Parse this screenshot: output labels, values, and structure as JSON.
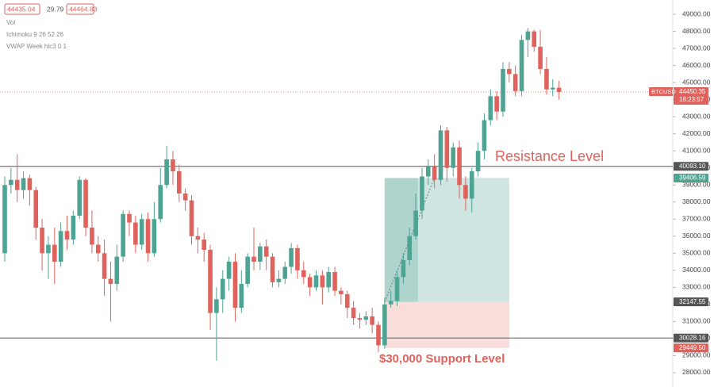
{
  "chart_data": {
    "type": "candlestick",
    "legend": {
      "values": [
        "44435.04",
        "29.79",
        "44464.83"
      ],
      "indicators": [
        "Vol",
        "Ichimoku 9 26 52 26",
        "VWAP Week hlc3 0 1"
      ]
    },
    "up_color": "#4fa392",
    "down_color": "#e0625c",
    "open": [
      35000,
      39000,
      39300,
      38700,
      39400,
      38700,
      36500,
      35000,
      35500,
      34500,
      36300,
      35800,
      37200,
      39300,
      36500,
      35500,
      35000,
      33500,
      33200,
      34800,
      37300,
      36800,
      35500,
      37000,
      35000,
      37000,
      39000,
      40500,
      39800,
      38500,
      38100,
      36000,
      35800,
      35200,
      31500,
      32300,
      33500,
      34500,
      31800,
      33200,
      34800,
      34500,
      35400,
      34800,
      33300,
      33500,
      34200,
      35300,
      34000,
      33600,
      33000,
      33700,
      33000,
      33900,
      32800,
      32600,
      31800,
      31200,
      31100,
      31300,
      30800,
      29600,
      32000,
      32200,
      33600,
      34600,
      36000,
      37500,
      39500,
      40100,
      39300,
      42200,
      40000,
      41200,
      39000,
      38200,
      39800,
      41000,
      42800,
      44200,
      43300,
      45800,
      45500,
      44500,
      47500,
      48000,
      47100,
      45800,
      44600,
      44700
    ],
    "high": [
      39500,
      40000,
      40800,
      39800,
      39600,
      38900,
      37000,
      36000,
      36500,
      36800,
      37200,
      37500,
      39500,
      39400,
      37500,
      36000,
      35800,
      34500,
      35500,
      37500,
      37500,
      37200,
      37300,
      37400,
      38000,
      40000,
      41300,
      41000,
      40200,
      38800,
      38400,
      36500,
      36200,
      35500,
      33000,
      34000,
      34800,
      35000,
      34000,
      35000,
      36500,
      35600,
      35800,
      35000,
      34000,
      34500,
      35600,
      35500,
      34500,
      33800,
      34000,
      34000,
      34200,
      34200,
      33000,
      32800,
      32200,
      31500,
      31600,
      31800,
      31000,
      32400,
      32800,
      34000,
      35000,
      36500,
      38500,
      40000,
      40500,
      40800,
      42500,
      42400,
      41500,
      41600,
      39500,
      40000,
      41500,
      43200,
      44600,
      44500,
      46200,
      46200,
      46000,
      47800,
      48200,
      48100,
      48100,
      46500,
      45200,
      45100
    ],
    "low": [
      34500,
      38500,
      38000,
      38200,
      37800,
      35800,
      34000,
      33500,
      33200,
      34200,
      35200,
      35500,
      37000,
      36000,
      35000,
      34500,
      32500,
      31000,
      32800,
      34500,
      36000,
      35000,
      35200,
      34500,
      34800,
      36800,
      38800,
      39000,
      38000,
      37500,
      35500,
      35000,
      34500,
      30500,
      28700,
      31500,
      32800,
      31000,
      31500,
      33000,
      34000,
      34000,
      34000,
      33000,
      33000,
      33200,
      33800,
      33500,
      33200,
      32500,
      32800,
      32000,
      32700,
      32500,
      32000,
      31200,
      30800,
      30600,
      30800,
      30300,
      29200,
      29400,
      31800,
      31900,
      33200,
      34300,
      35800,
      37000,
      39000,
      38800,
      39000,
      39200,
      39500,
      38200,
      37500,
      37400,
      39500,
      40500,
      42500,
      42800,
      43000,
      45000,
      44200,
      44200,
      46500,
      46800,
      45500,
      44300,
      44200,
      44000
    ],
    "close": [
      39000,
      39300,
      38700,
      39400,
      38700,
      36500,
      35000,
      35500,
      34500,
      36300,
      35800,
      37200,
      39300,
      36500,
      35500,
      35000,
      33500,
      33200,
      34800,
      37300,
      36800,
      35500,
      37000,
      35000,
      37000,
      39000,
      40500,
      39800,
      38500,
      38100,
      36000,
      35800,
      35200,
      31500,
      32300,
      33500,
      34500,
      31800,
      33200,
      34800,
      34500,
      35400,
      34800,
      33300,
      33500,
      34200,
      35300,
      34000,
      33600,
      33000,
      33700,
      33000,
      33900,
      32800,
      32600,
      31800,
      31200,
      31100,
      31300,
      30800,
      29600,
      32000,
      32200,
      33600,
      34600,
      36000,
      37500,
      39500,
      40100,
      39300,
      42200,
      40000,
      41200,
      39000,
      38200,
      39800,
      41000,
      42800,
      44200,
      43300,
      45800,
      45500,
      44500,
      47500,
      48000,
      47100,
      45800,
      44600,
      44700,
      44450
    ],
    "ylim": [
      27160,
      49840
    ],
    "yticks": [
      {
        "value": 28000,
        "label": "28000.00"
      },
      {
        "value": 29000,
        "label": "29000.00"
      },
      {
        "value": 30000,
        "label": "30000.00"
      },
      {
        "value": 31000,
        "label": "31000.00"
      },
      {
        "value": 32000,
        "label": "32000.00"
      },
      {
        "value": 33000,
        "label": "33000.00"
      },
      {
        "value": 34000,
        "label": "34000.00"
      },
      {
        "value": 35000,
        "label": "35000.00"
      },
      {
        "value": 36000,
        "label": "36000.00"
      },
      {
        "value": 37000,
        "label": "37000.00"
      },
      {
        "value": 38000,
        "label": "38000.00"
      },
      {
        "value": 39000,
        "label": "39000.00"
      },
      {
        "value": 40000,
        "label": "40000.00"
      },
      {
        "value": 41000,
        "label": "41000.00"
      },
      {
        "value": 42000,
        "label": "42000.00"
      },
      {
        "value": 43000,
        "label": "43000.00"
      },
      {
        "value": 44000,
        "label": "44000.00"
      },
      {
        "value": 45000,
        "label": "45000.00"
      },
      {
        "value": 46000,
        "label": "46000.00"
      },
      {
        "value": 47000,
        "label": "47000.00"
      },
      {
        "value": 48000,
        "label": "48000.00"
      },
      {
        "value": 49000,
        "label": "49000.00"
      }
    ],
    "price_tags": {
      "values": [
        44450.35,
        40093.1,
        39406.59,
        32147.55,
        30028.16,
        29449.5
      ],
      "value_labels": [
        "44450.35",
        "40093.10",
        "39406.59",
        "32147.55",
        "30028.16",
        "29449.50"
      ],
      "colors": [
        "#e0625c",
        "#555555",
        "#4fa392",
        "#555555",
        "#555555",
        "#e0625c"
      ]
    },
    "symbol": "BTCUSD",
    "countdown": "18:23:57",
    "annotations": [
      "Resistance Level",
      "$30,000 Support Level"
    ]
  }
}
